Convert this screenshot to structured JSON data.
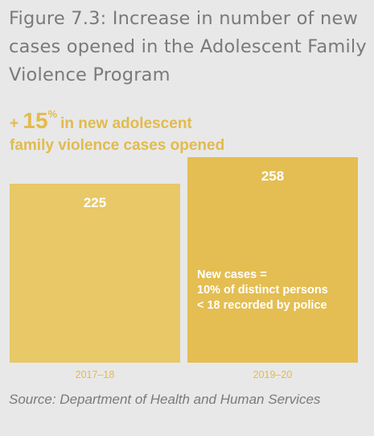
{
  "page": {
    "title": "Figure 7.3: Increase in number of new cases opened in the Adolescent Family Violence Program",
    "headline": {
      "prefix": "+ ",
      "value": "15",
      "percent_sign": "%",
      "line1_rest": "in new adolescent",
      "line2": "family violence cases opened"
    },
    "source": "Source: Department of Health and Human Services"
  },
  "colors": {
    "background": "#e8e8e8",
    "bar_2017_18": "#e8c867",
    "bar_2019_20": "#e4be52",
    "accent_text": "#e2bb4b",
    "title_text": "#7a7a7a",
    "value_text": "#ffffff"
  },
  "chart_data": {
    "type": "bar",
    "categories": [
      "2017–18",
      "2019–20"
    ],
    "values": [
      225,
      258
    ],
    "ylim": [
      0,
      258
    ],
    "grid": false,
    "legend": "none",
    "annotations": [
      {
        "category": "2019–20",
        "lines": [
          "New cases =",
          "10% of distinct persons",
          "< 18 recorded by police"
        ]
      }
    ],
    "title": "",
    "xlabel": "",
    "ylabel": ""
  }
}
